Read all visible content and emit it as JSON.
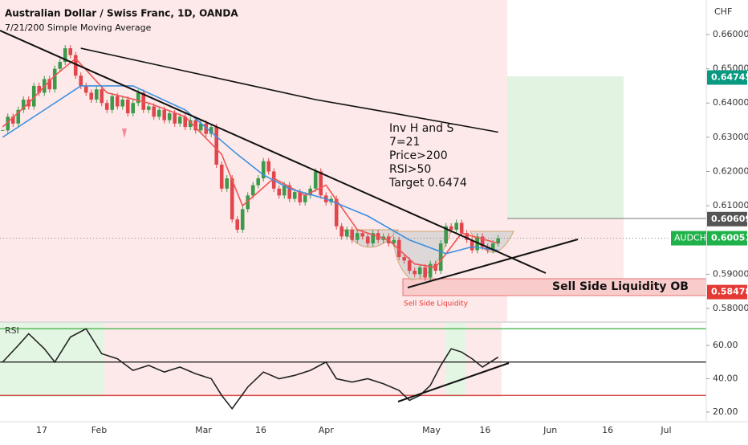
{
  "header": {
    "title": "Australian Dollar / Swiss Franc, 1D, OANDA",
    "indicator": "7/21/200 Simple Moving Average",
    "currency": "CHF"
  },
  "annotations": {
    "setup": [
      "Inv H and S",
      "7=21",
      "Price>200",
      "RSI>50",
      "Target 0.6474"
    ],
    "ob_label": "Sell Side Liquidity OB",
    "liquidity_label": "Sell Side Liquidity"
  },
  "chart_data": [
    {
      "type": "candlestick",
      "xlim": [
        -0.5,
        134.9
      ],
      "xticks": [
        {
          "value": 7.5,
          "label": "17"
        },
        {
          "value": 18.5,
          "label": "Feb"
        },
        {
          "value": 38.5,
          "label": "Mar"
        },
        {
          "value": 49.5,
          "label": "16"
        },
        {
          "value": 62,
          "label": "Apr"
        },
        {
          "value": 82.2,
          "label": "May"
        },
        {
          "value": 92.5,
          "label": "16"
        },
        {
          "value": 105,
          "label": "Jun"
        },
        {
          "value": 116,
          "label": "16"
        },
        {
          "value": 127.2,
          "label": "Jul"
        }
      ],
      "ylim": [
        0.57624,
        0.67009
      ],
      "yticks": [
        {
          "value": 0.66,
          "label": "0.66000"
        },
        {
          "value": 0.65,
          "label": "0.65000"
        },
        {
          "value": 0.64,
          "label": "0.64000"
        },
        {
          "value": 0.63,
          "label": "0.63000"
        },
        {
          "value": 0.62,
          "label": "0.62000"
        },
        {
          "value": 0.61,
          "label": "0.61000"
        },
        {
          "value": 0.59,
          "label": "0.59000"
        },
        {
          "value": 0.58,
          "label": "0.58000"
        }
      ],
      "up_color": "#3c9a4a",
      "down_color": "#e0464c",
      "values": [
        0.632,
        0.636,
        0.634,
        0.638,
        0.641,
        0.639,
        0.645,
        0.643,
        0.647,
        0.644,
        0.65,
        0.652,
        0.656,
        0.654,
        0.648,
        0.645,
        0.643,
        0.641,
        0.644,
        0.64,
        0.638,
        0.642,
        0.639,
        0.641,
        0.637,
        0.64,
        0.643,
        0.638,
        0.639,
        0.636,
        0.638,
        0.635,
        0.637,
        0.634,
        0.636,
        0.633,
        0.635,
        0.632,
        0.634,
        0.631,
        0.633,
        0.622,
        0.615,
        0.618,
        0.606,
        0.603,
        0.609,
        0.613,
        0.616,
        0.618,
        0.623,
        0.62,
        0.615,
        0.613,
        0.616,
        0.612,
        0.614,
        0.611,
        0.613,
        0.615,
        0.62,
        0.613,
        0.611,
        0.612,
        0.604,
        0.601,
        0.603,
        0.6,
        0.602,
        0.601,
        0.599,
        0.602,
        0.6,
        0.601,
        0.599,
        0.6,
        0.595,
        0.594,
        0.591,
        0.59,
        0.592,
        0.589,
        0.593,
        0.591,
        0.599,
        0.604,
        0.603,
        0.605,
        0.602,
        0.6,
        0.597,
        0.601,
        0.598,
        0.597,
        0.599,
        0.6005
      ],
      "series": [
        {
          "name": "SMA 7",
          "color": "#f05454",
          "x": [
            0,
            5,
            10,
            14,
            20,
            28,
            35,
            42,
            46,
            52,
            58,
            62,
            68,
            74,
            79,
            83,
            88,
            95
          ],
          "values": [
            0.633,
            0.64,
            0.648,
            0.653,
            0.643,
            0.64,
            0.636,
            0.625,
            0.61,
            0.618,
            0.613,
            0.616,
            0.603,
            0.6,
            0.593,
            0.592,
            0.602,
            0.599
          ]
        },
        {
          "name": "SMA 21",
          "color": "#3d8fe0",
          "x": [
            0,
            10,
            15,
            25,
            35,
            45,
            50,
            55,
            62,
            70,
            78,
            85,
            90,
            95
          ],
          "values": [
            0.63,
            0.64,
            0.645,
            0.645,
            0.638,
            0.625,
            0.619,
            0.615,
            0.612,
            0.607,
            0.6,
            0.596,
            0.598,
            0.597
          ]
        },
        {
          "name": "SMA 200",
          "color": "#111111",
          "x": [
            15,
            30,
            45,
            60,
            75,
            95
          ],
          "values": [
            0.656,
            0.651,
            0.646,
            0.641,
            0.637,
            0.6315
          ]
        }
      ],
      "price_labels": [
        {
          "value": 0.64745,
          "color": "#089981"
        },
        {
          "value": 0.60609,
          "color": "#555555"
        },
        {
          "name": "AUDCHF",
          "value": 0.60051,
          "color": "#20b24a"
        },
        {
          "value": 0.58478,
          "color": "#e53935"
        }
      ]
    },
    {
      "type": "line",
      "title": "RSI",
      "ylim": [
        14.2,
        73.5
      ],
      "yticks": [
        {
          "value": 60,
          "label": "60.00"
        },
        {
          "value": 40,
          "label": "40.00"
        },
        {
          "value": 20,
          "label": "20.00"
        }
      ],
      "levels": [
        {
          "value": 70,
          "color": "#3cb043"
        },
        {
          "value": 50,
          "color": "#111111"
        },
        {
          "value": 30,
          "color": "#d32f2f"
        }
      ],
      "series": [
        {
          "name": "RSI",
          "color": "#222222",
          "x": [
            0,
            3,
            5,
            8,
            10,
            13,
            16,
            19,
            22,
            25,
            28,
            31,
            34,
            37,
            40,
            42,
            44,
            47,
            50,
            53,
            56,
            59,
            62,
            64,
            67,
            70,
            73,
            76,
            78,
            80,
            82,
            84,
            86,
            88,
            90,
            92,
            95
          ],
          "values": [
            50,
            60,
            67,
            58,
            50,
            65,
            70,
            55,
            52,
            45,
            48,
            44,
            47,
            43,
            40,
            30,
            22,
            35,
            44,
            40,
            42,
            45,
            50,
            40,
            38,
            40,
            37,
            33,
            27,
            30,
            36,
            48,
            58,
            56,
            52,
            47,
            53
          ]
        }
      ]
    }
  ]
}
